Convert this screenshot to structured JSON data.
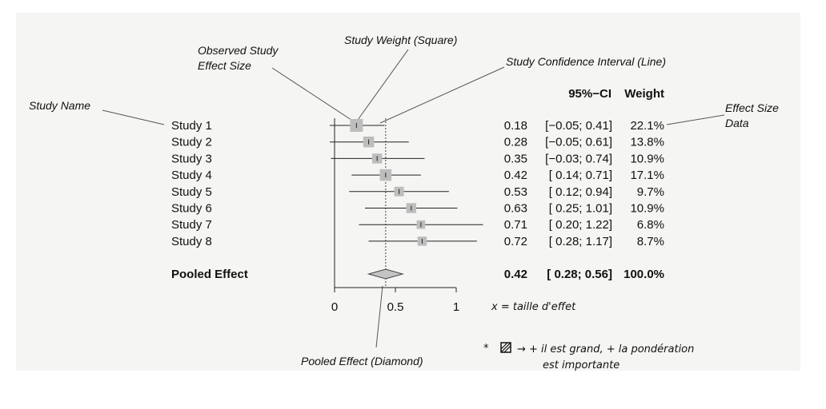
{
  "chart_data": {
    "type": "forest",
    "columns": {
      "ci": "95%−CI",
      "weight": "Weight"
    },
    "x_ticks": [
      "0",
      "0.5",
      "1"
    ],
    "xlim": [
      0,
      1
    ],
    "reference_line": 0.42,
    "studies": [
      {
        "name": "Study 1",
        "effect": 0.18,
        "lower": -0.05,
        "upper": 0.41,
        "weight": 22.1,
        "effect_text": "0.18",
        "ci_text": "[−0.05; 0.41]",
        "weight_text": "22.1%"
      },
      {
        "name": "Study 2",
        "effect": 0.28,
        "lower": -0.05,
        "upper": 0.61,
        "weight": 13.8,
        "effect_text": "0.28",
        "ci_text": "[−0.05; 0.61]",
        "weight_text": "13.8%"
      },
      {
        "name": "Study 3",
        "effect": 0.35,
        "lower": -0.03,
        "upper": 0.74,
        "weight": 10.9,
        "effect_text": "0.35",
        "ci_text": "[−0.03; 0.74]",
        "weight_text": "10.9%"
      },
      {
        "name": "Study 4",
        "effect": 0.42,
        "lower": 0.14,
        "upper": 0.71,
        "weight": 17.1,
        "effect_text": "0.42",
        "ci_text": "[ 0.14; 0.71]",
        "weight_text": "17.1%"
      },
      {
        "name": "Study 5",
        "effect": 0.53,
        "lower": 0.12,
        "upper": 0.94,
        "weight": 9.7,
        "effect_text": "0.53",
        "ci_text": "[ 0.12; 0.94]",
        "weight_text": "9.7%"
      },
      {
        "name": "Study 6",
        "effect": 0.63,
        "lower": 0.25,
        "upper": 1.01,
        "weight": 10.9,
        "effect_text": "0.63",
        "ci_text": "[ 0.25; 1.01]",
        "weight_text": "10.9%"
      },
      {
        "name": "Study 7",
        "effect": 0.71,
        "lower": 0.2,
        "upper": 1.22,
        "weight": 6.8,
        "effect_text": "0.71",
        "ci_text": "[ 0.20; 1.22]",
        "weight_text": "6.8%"
      },
      {
        "name": "Study 8",
        "effect": 0.72,
        "lower": 0.28,
        "upper": 1.17,
        "weight": 8.7,
        "effect_text": "0.72",
        "ci_text": "[ 0.28; 1.17]",
        "weight_text": "8.7%"
      }
    ],
    "pooled": {
      "name": "Pooled Effect",
      "effect": 0.42,
      "lower": 0.28,
      "upper": 0.56,
      "weight": 100.0,
      "effect_text": "0.42",
      "ci_text": "[ 0.28; 0.56]",
      "weight_text": "100.0%"
    },
    "annotations": {
      "observed_effect_line1": "Observed Study",
      "observed_effect_line2": "Effect Size",
      "study_weight": "Study Weight (Square)",
      "study_ci": "Study Confidence Interval (Line)",
      "study_name": "Study Name",
      "effect_size_data_line1": "Effect Size",
      "effect_size_data_line2": "Data",
      "pooled_diamond": "Pooled Effect (Diamond)"
    },
    "handwritten_notes": {
      "x_note": "x = taille d'effet",
      "weight_note_line1": "→ + il est grand, + la pondération",
      "weight_note_line2": "est importante"
    }
  }
}
